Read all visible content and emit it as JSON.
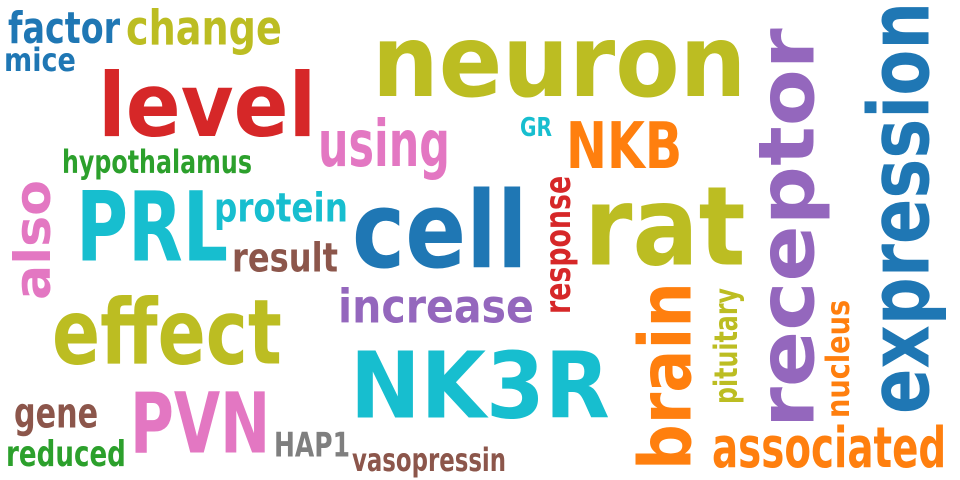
{
  "words": [
    {
      "id": "neuron",
      "text": "neuron",
      "color": "#bcbd22",
      "rotated": false
    },
    {
      "id": "expression",
      "text": "expression",
      "color": "#1f77b4",
      "rotated": true
    },
    {
      "id": "receptor",
      "text": "receptor",
      "color": "#9467bd",
      "rotated": true
    },
    {
      "id": "nk3r",
      "text": "NK3R",
      "color": "#17becf",
      "rotated": false
    },
    {
      "id": "cell",
      "text": "cell",
      "color": "#1f77b4",
      "rotated": false
    },
    {
      "id": "rat",
      "text": "rat",
      "color": "#bcbd22",
      "rotated": false
    },
    {
      "id": "level",
      "text": "level",
      "color": "#d62728",
      "rotated": false
    },
    {
      "id": "prl",
      "text": "PRL",
      "color": "#17becf",
      "rotated": false
    },
    {
      "id": "effect",
      "text": "effect",
      "color": "#bcbd22",
      "rotated": false
    },
    {
      "id": "pvn",
      "text": "PVN",
      "color": "#e377c2",
      "rotated": false
    },
    {
      "id": "brain",
      "text": "brain",
      "color": "#ff7f0e",
      "rotated": true
    },
    {
      "id": "using",
      "text": "using",
      "color": "#e377c2",
      "rotated": false
    },
    {
      "id": "nkb",
      "text": "NKB",
      "color": "#ff7f0e",
      "rotated": false
    },
    {
      "id": "also",
      "text": "also",
      "color": "#e377c2",
      "rotated": true
    },
    {
      "id": "change",
      "text": "change",
      "color": "#bcbd22",
      "rotated": false
    },
    {
      "id": "associated",
      "text": "associated",
      "color": "#ff7f0e",
      "rotated": false
    },
    {
      "id": "increase",
      "text": "increase",
      "color": "#9467bd",
      "rotated": false
    },
    {
      "id": "protein",
      "text": "protein",
      "color": "#17becf",
      "rotated": false
    },
    {
      "id": "result",
      "text": "result",
      "color": "#8c564b",
      "rotated": false
    },
    {
      "id": "factor",
      "text": "factor",
      "color": "#1f77b4",
      "rotated": false
    },
    {
      "id": "gene",
      "text": "gene",
      "color": "#8c564b",
      "rotated": false
    },
    {
      "id": "pituitary",
      "text": "pituitary",
      "color": "#bcbd22",
      "rotated": true
    },
    {
      "id": "nucleus",
      "text": "nucleus",
      "color": "#ff7f0e",
      "rotated": true
    },
    {
      "id": "response",
      "text": "response",
      "color": "#d62728",
      "rotated": true
    },
    {
      "id": "hap1",
      "text": "HAP1",
      "color": "#7f7f7f",
      "rotated": false
    },
    {
      "id": "reduced",
      "text": "reduced",
      "color": "#2ca02c",
      "rotated": false
    },
    {
      "id": "hypothalamus",
      "text": "hypothalamus",
      "color": "#2ca02c",
      "rotated": false
    },
    {
      "id": "vasopressin",
      "text": "vasopressin",
      "color": "#8c564b",
      "rotated": false
    },
    {
      "id": "mice",
      "text": "mice",
      "color": "#1f77b4",
      "rotated": false
    },
    {
      "id": "gr",
      "text": "GR",
      "color": "#17becf",
      "rotated": false
    }
  ]
}
